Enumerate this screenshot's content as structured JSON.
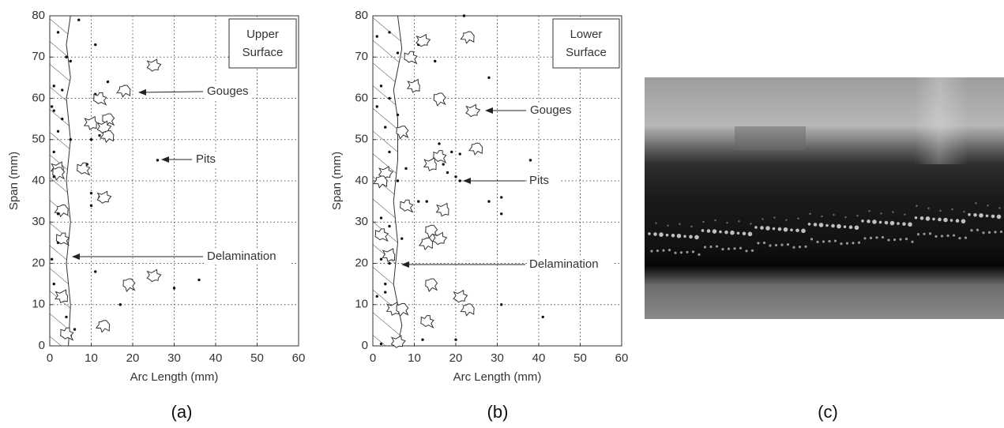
{
  "chart_data": [
    {
      "type": "scatter",
      "caption": "(a)",
      "x_label": "Arc Length (mm)",
      "y_label": "Span (mm)",
      "xlim": [
        0,
        60
      ],
      "ylim": [
        0,
        80
      ],
      "xticks": [
        0,
        10,
        20,
        30,
        40,
        50,
        60
      ],
      "yticks": [
        0,
        10,
        20,
        30,
        40,
        50,
        60,
        70,
        80
      ],
      "grid": true,
      "box_label": [
        "Upper",
        "Surface"
      ],
      "annotations": [
        "Gouges",
        "Pits",
        "Delamination"
      ],
      "pits": {
        "x": [
          7,
          11,
          2,
          4,
          5,
          1,
          3,
          0.5,
          14,
          1,
          11,
          3,
          2,
          5,
          10,
          12,
          1,
          9,
          26,
          1,
          10,
          12,
          10,
          2,
          2,
          0.5,
          11,
          1,
          17,
          30,
          36,
          4,
          6,
          5
        ],
        "y": [
          79,
          73,
          76,
          70,
          69,
          63,
          62,
          58,
          64,
          57,
          61,
          55,
          52,
          50,
          50,
          51,
          47,
          44,
          45,
          41,
          37,
          36,
          34,
          32,
          25,
          21,
          18,
          15,
          10,
          14,
          16,
          7,
          4,
          2.5
        ]
      },
      "gouges": {
        "x": [
          25,
          18,
          12,
          10,
          14,
          13,
          14,
          8,
          2,
          2,
          13,
          3,
          3,
          3,
          19,
          25,
          13,
          4
        ],
        "y": [
          68,
          62,
          60,
          54,
          55,
          53,
          51,
          43,
          43,
          42,
          36,
          33,
          26,
          12,
          15,
          17,
          5,
          3
        ]
      },
      "delamination": {
        "x": [
          5,
          4,
          5,
          4,
          5,
          4,
          5,
          4,
          5,
          4.5
        ],
        "y": [
          80,
          73,
          65,
          60,
          50,
          40,
          30,
          20,
          10,
          0
        ]
      }
    },
    {
      "type": "scatter",
      "caption": "(b)",
      "x_label": "Arc Length (mm)",
      "y_label": "Span (mm)",
      "xlim": [
        0,
        60
      ],
      "ylim": [
        0,
        80
      ],
      "xticks": [
        0,
        10,
        20,
        30,
        40,
        50,
        60
      ],
      "yticks": [
        0,
        10,
        20,
        30,
        40,
        50,
        60,
        70,
        80
      ],
      "grid": true,
      "box_label": [
        "Lower",
        "Surface"
      ],
      "annotations": [
        "Gouges",
        "Pits",
        "Delamination"
      ],
      "pits": {
        "x": [
          22,
          1,
          4,
          11,
          6,
          15,
          28,
          2,
          4,
          1,
          6,
          3,
          8,
          4,
          16,
          19,
          21,
          38,
          17,
          18,
          20,
          21,
          8,
          6,
          31,
          28,
          31,
          11,
          13,
          2,
          4,
          7,
          2,
          4,
          3,
          1,
          3,
          31,
          41,
          20,
          12,
          2,
          8
        ],
        "y": [
          80,
          75,
          76,
          73,
          71,
          69,
          65,
          63,
          60,
          58,
          56,
          53,
          51,
          47,
          49,
          47,
          46.5,
          45,
          44,
          42,
          41,
          40,
          43,
          40,
          36,
          35,
          32,
          35,
          35,
          31,
          29,
          26,
          21,
          20,
          15,
          12,
          13,
          10,
          7,
          1.5,
          1.5,
          0.5,
          8
        ]
      },
      "gouges": {
        "x": [
          12,
          23,
          9,
          10,
          16,
          24,
          25,
          16,
          14,
          7,
          3,
          2,
          8,
          17,
          14,
          16,
          13,
          2,
          4,
          14,
          21,
          23,
          13,
          5,
          7,
          6
        ],
        "y": [
          74,
          75,
          70,
          63,
          60,
          57,
          48,
          46,
          44,
          52,
          42,
          40,
          34,
          33,
          28,
          26,
          25,
          27,
          22,
          15,
          12,
          9,
          6,
          9,
          9,
          1
        ]
      },
      "delamination": {
        "x": [
          6,
          7,
          5,
          6,
          6,
          5,
          6,
          5,
          7,
          6
        ],
        "y": [
          80,
          72,
          62,
          55,
          45,
          35,
          25,
          15,
          5,
          0
        ]
      }
    }
  ],
  "photo": {
    "caption": "(c)"
  }
}
